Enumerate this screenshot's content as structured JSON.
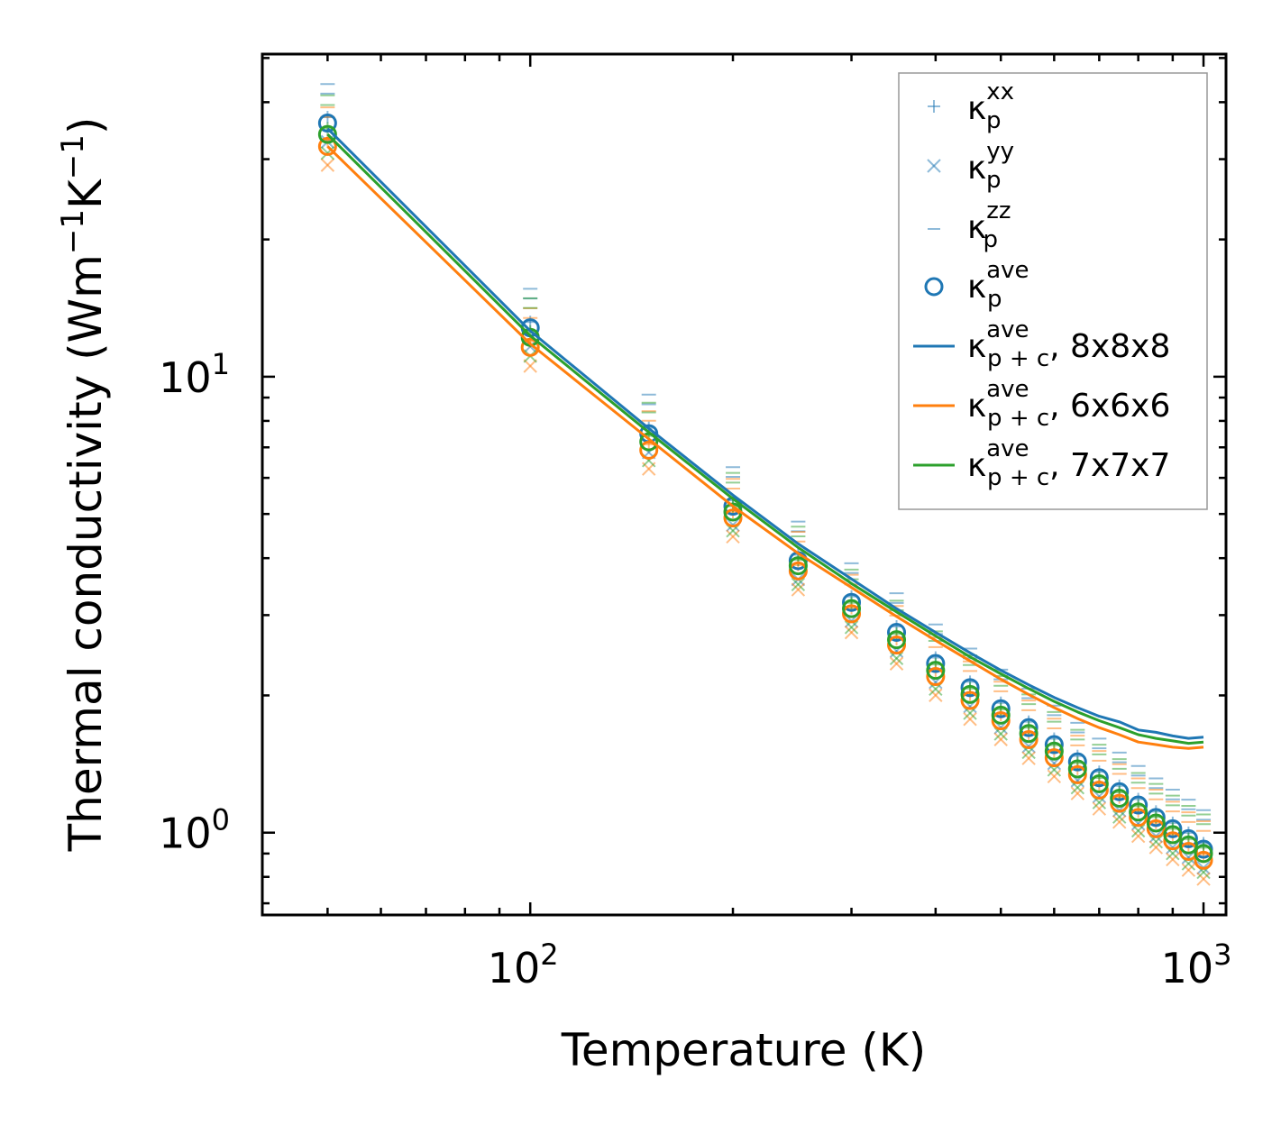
{
  "chart_data": {
    "type": "scatter",
    "xscale": "log",
    "yscale": "log",
    "xlabel": "Temperature (K)",
    "ylabel_main": "Thermal conductivity (Wm",
    "ylabel_exp1": "−1",
    "ylabel_mid": "K",
    "ylabel_exp2": "−1",
    "ylabel_end": ")",
    "xlim": [
      40,
      1080
    ],
    "ylim": [
      0.66,
      51
    ],
    "xticks": [
      {
        "value": 100,
        "base": "10",
        "exp": "2"
      },
      {
        "value": 1000,
        "base": "10",
        "exp": "3"
      }
    ],
    "yticks": [
      {
        "value": 1,
        "base": "10",
        "exp": "0"
      },
      {
        "value": 10,
        "base": "10",
        "exp": "1"
      }
    ],
    "colors": {
      "blue": "#1f77b4",
      "orange": "#ff7f0e",
      "green": "#2ca02c"
    },
    "temperatures": [
      50,
      100,
      150,
      200,
      250,
      300,
      350,
      400,
      450,
      500,
      550,
      600,
      650,
      700,
      750,
      800,
      850,
      900,
      950,
      1000
    ],
    "series": [
      {
        "name": "8x8x8",
        "color": "#1f77b4",
        "kave": [
          36,
          12.8,
          7.5,
          5.2,
          3.95,
          3.2,
          2.75,
          2.35,
          2.08,
          1.87,
          1.7,
          1.56,
          1.43,
          1.32,
          1.23,
          1.15,
          1.08,
          1.02,
          0.97,
          0.92
        ],
        "line": [
          35,
          12.6,
          7.7,
          5.5,
          4.3,
          3.6,
          3.1,
          2.75,
          2.48,
          2.27,
          2.11,
          1.98,
          1.88,
          1.8,
          1.75,
          1.68,
          1.66,
          1.63,
          1.61,
          1.62
        ]
      },
      {
        "name": "6x6x6",
        "color": "#ff7f0e",
        "kave": [
          32,
          11.6,
          6.9,
          4.9,
          3.75,
          3.02,
          2.58,
          2.2,
          1.95,
          1.76,
          1.6,
          1.46,
          1.34,
          1.24,
          1.16,
          1.08,
          1.02,
          0.96,
          0.91,
          0.87
        ],
        "line": [
          32,
          11.8,
          7.3,
          5.2,
          4.1,
          3.45,
          2.98,
          2.64,
          2.38,
          2.17,
          2.01,
          1.88,
          1.78,
          1.7,
          1.64,
          1.58,
          1.56,
          1.54,
          1.53,
          1.54
        ]
      },
      {
        "name": "7x7x7",
        "color": "#2ca02c",
        "kave": [
          34,
          12.2,
          7.2,
          5.05,
          3.85,
          3.1,
          2.65,
          2.27,
          2.01,
          1.81,
          1.65,
          1.51,
          1.38,
          1.28,
          1.19,
          1.11,
          1.05,
          0.99,
          0.94,
          0.9
        ],
        "line": [
          34,
          12.3,
          7.55,
          5.4,
          4.22,
          3.52,
          3.05,
          2.7,
          2.43,
          2.23,
          2.07,
          1.94,
          1.84,
          1.76,
          1.7,
          1.64,
          1.61,
          1.59,
          1.57,
          1.58
        ]
      }
    ],
    "legend": {
      "position": "top-right",
      "entries": [
        {
          "marker": "plus",
          "color": "#1f77b4",
          "base": "κ",
          "sub": "p",
          "sup": "xx",
          "suffix": ""
        },
        {
          "marker": "x",
          "color": "#1f77b4",
          "base": "κ",
          "sub": "p",
          "sup": "yy",
          "suffix": ""
        },
        {
          "marker": "dash",
          "color": "#1f77b4",
          "base": "κ",
          "sub": "p",
          "sup": "zz",
          "suffix": ""
        },
        {
          "marker": "circle",
          "color": "#1f77b4",
          "base": "κ",
          "sub": "p",
          "sup": "ave",
          "suffix": ""
        },
        {
          "marker": "line",
          "color": "#1f77b4",
          "base": "κ",
          "sub": "p + c",
          "sup": "ave",
          "suffix": ", 8x8x8"
        },
        {
          "marker": "line",
          "color": "#ff7f0e",
          "base": "κ",
          "sub": "p + c",
          "sup": "ave",
          "suffix": ", 6x6x6"
        },
        {
          "marker": "line",
          "color": "#2ca02c",
          "base": "κ",
          "sub": "p + c",
          "sup": "ave",
          "suffix": ", 7x7x7"
        }
      ]
    }
  }
}
